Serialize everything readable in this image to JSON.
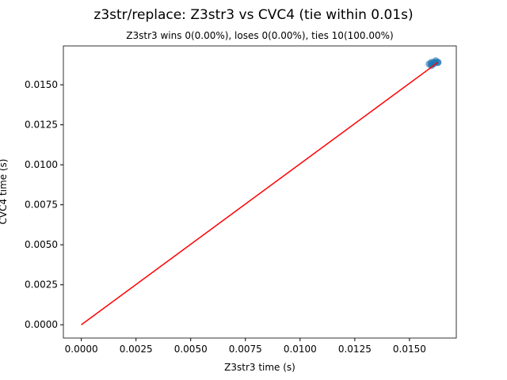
{
  "chart_data": {
    "type": "scatter",
    "title": "z3str/replace: Z3str3 vs CVC4 (tie within 0.01s)",
    "subtitle": "Z3str3 wins 0(0.00%), loses 0(0.00%), ties 10(100.00%)",
    "x_label": "Z3str3 time (s)",
    "y_label": "CVC4 time (s)",
    "points": {
      "color": "#1f77b4",
      "x": [
        0.0159,
        0.016,
        0.016,
        0.0161,
        0.0161,
        0.0162,
        0.0162,
        0.0163,
        0.0163,
        0.016
      ],
      "y": [
        0.0163,
        0.0164,
        0.0162,
        0.0164,
        0.0163,
        0.0164,
        0.0165,
        0.0164,
        0.0164,
        0.0163
      ]
    },
    "line": {
      "color": "#ff0000",
      "x": [
        0,
        0.0163
      ],
      "y": [
        0,
        0.0164
      ]
    },
    "xlim": [
      -0.00082,
      0.01714
    ],
    "ylim": [
      -0.00083,
      0.01743
    ],
    "xticks": [
      {
        "value": 0,
        "label": "0.0000"
      },
      {
        "value": 0.0025,
        "label": "0.0025"
      },
      {
        "value": 0.005,
        "label": "0.0050"
      },
      {
        "value": 0.0075,
        "label": "0.0075"
      },
      {
        "value": 0.01,
        "label": "0.0100"
      },
      {
        "value": 0.0125,
        "label": "0.0125"
      },
      {
        "value": 0.015,
        "label": "0.0150"
      }
    ],
    "yticks": [
      {
        "value": 0,
        "label": "0.0000"
      },
      {
        "value": 0.0025,
        "label": "0.0025"
      },
      {
        "value": 0.005,
        "label": "0.0050"
      },
      {
        "value": 0.0075,
        "label": "0.0075"
      },
      {
        "value": 0.01,
        "label": "0.0100"
      },
      {
        "value": 0.0125,
        "label": "0.0125"
      },
      {
        "value": 0.015,
        "label": "0.0150"
      }
    ]
  }
}
